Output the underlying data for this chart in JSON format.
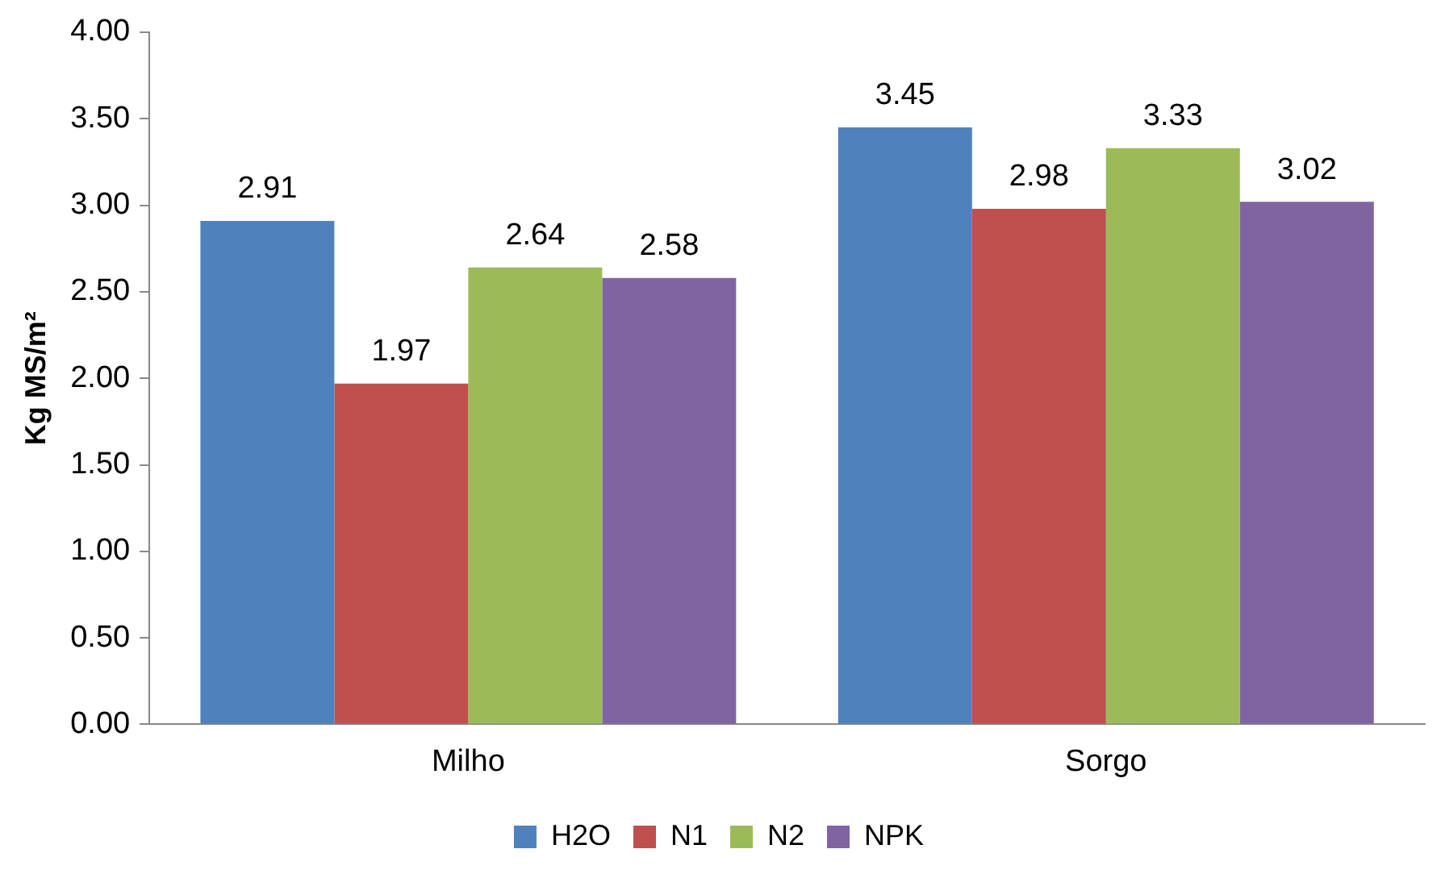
{
  "chart_data": {
    "type": "bar",
    "ylabel": "Kg MS/m²",
    "categories": [
      "Milho",
      "Sorgo"
    ],
    "series": [
      {
        "name": "H2O",
        "color": "#4f81bd",
        "values": [
          2.91,
          3.45
        ]
      },
      {
        "name": "N1",
        "color": "#c0504d",
        "values": [
          1.97,
          2.98
        ]
      },
      {
        "name": "N2",
        "color": "#9bbb59",
        "values": [
          2.64,
          3.33
        ]
      },
      {
        "name": "NPK",
        "color": "#8064a2",
        "values": [
          2.58,
          3.02
        ]
      }
    ],
    "ylim": [
      0,
      4
    ],
    "yticks": [
      {
        "value": 0,
        "label": "0.00"
      },
      {
        "value": 0.5,
        "label": "0.50"
      },
      {
        "value": 1,
        "label": "1.00"
      },
      {
        "value": 1.5,
        "label": "1.50"
      },
      {
        "value": 2,
        "label": "2.00"
      },
      {
        "value": 2.5,
        "label": "2.50"
      },
      {
        "value": 3,
        "label": "3.00"
      },
      {
        "value": 3.5,
        "label": "3.50"
      },
      {
        "value": 4,
        "label": "4.00"
      }
    ],
    "grid": false,
    "legend": "bottom",
    "data_labels": true
  }
}
